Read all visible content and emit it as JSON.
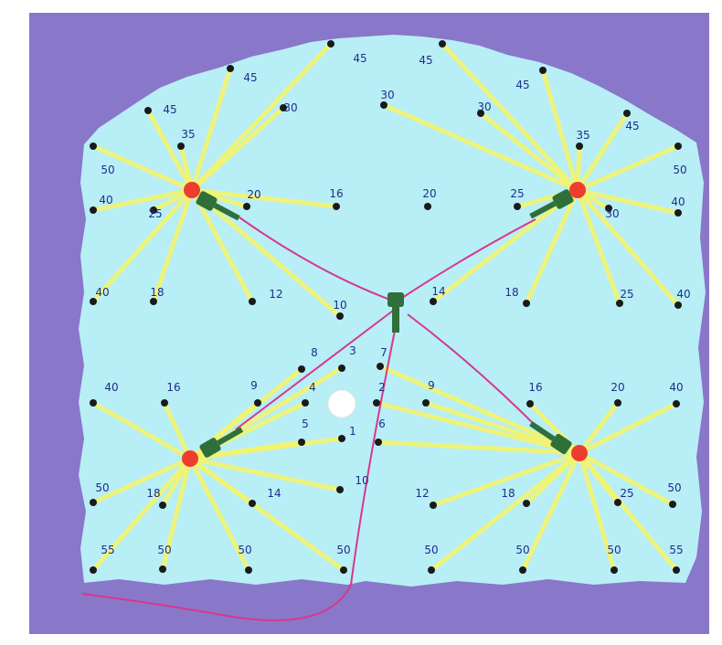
{
  "colors": {
    "frame": "#ffffff",
    "background": "#8977c9",
    "board": "#b8eef6",
    "ray": "#f3f56f",
    "wire": "#d6388b",
    "hub": "#2f6f3a",
    "lamp": "#ee3d2f",
    "pin": "#1a1a1a",
    "label": "#1f2e8a"
  },
  "labels": [
    "45",
    "45",
    "45",
    "45",
    "45",
    "45",
    "35",
    "35",
    "30",
    "30",
    "30",
    "50",
    "50",
    "40",
    "40",
    "25",
    "20",
    "16",
    "20",
    "25",
    "30",
    "40",
    "18",
    "12",
    "10",
    "14",
    "18",
    "25",
    "40",
    "8",
    "3",
    "7",
    "9",
    "4",
    "2",
    "9",
    "5",
    "1",
    "6",
    "40",
    "16",
    "16",
    "20",
    "40",
    "50",
    "18",
    "14",
    "10",
    "12",
    "18",
    "25",
    "50",
    "55",
    "50",
    "50",
    "50",
    "50",
    "50",
    "50",
    "55"
  ]
}
